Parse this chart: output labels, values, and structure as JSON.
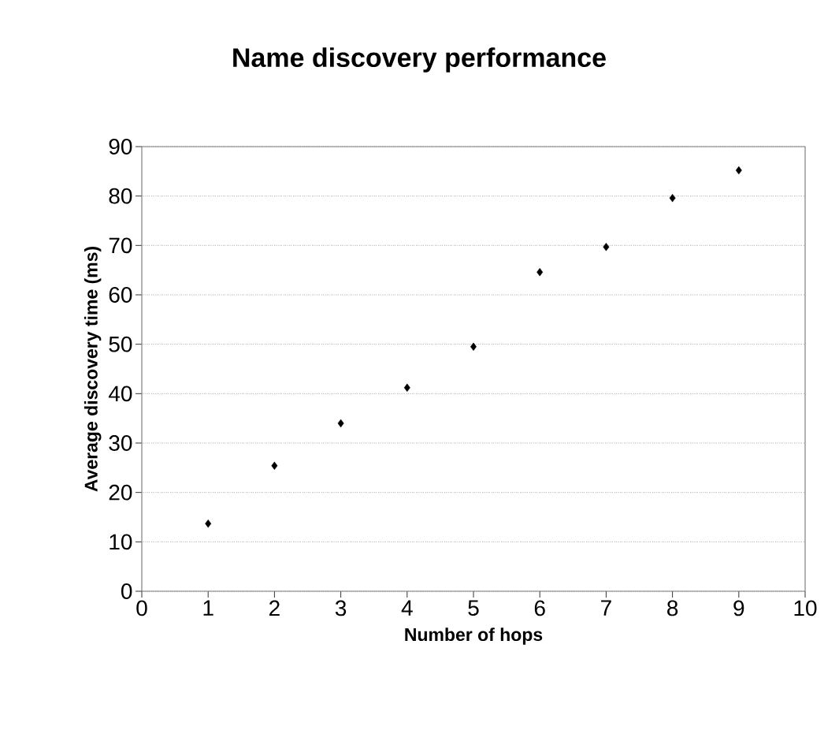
{
  "chart_data": {
    "type": "scatter",
    "title": "Name discovery performance",
    "xlabel": "Number of hops",
    "ylabel": "Average discovery time (ms)",
    "x": [
      1,
      2,
      3,
      4,
      5,
      6,
      7,
      8,
      9
    ],
    "values": [
      13.7,
      25.4,
      34,
      41.2,
      49.5,
      64.6,
      69.7,
      79.6,
      85.2
    ],
    "color": "#000000",
    "marker": "diamond",
    "xlim": [
      0,
      10
    ],
    "xticks": [
      0,
      1,
      2,
      3,
      4,
      5,
      6,
      7,
      8,
      9,
      10
    ],
    "ylim": [
      0,
      90
    ],
    "yticks": [
      0,
      10,
      20,
      30,
      40,
      50,
      60,
      70,
      80,
      90
    ],
    "grid": "y"
  }
}
